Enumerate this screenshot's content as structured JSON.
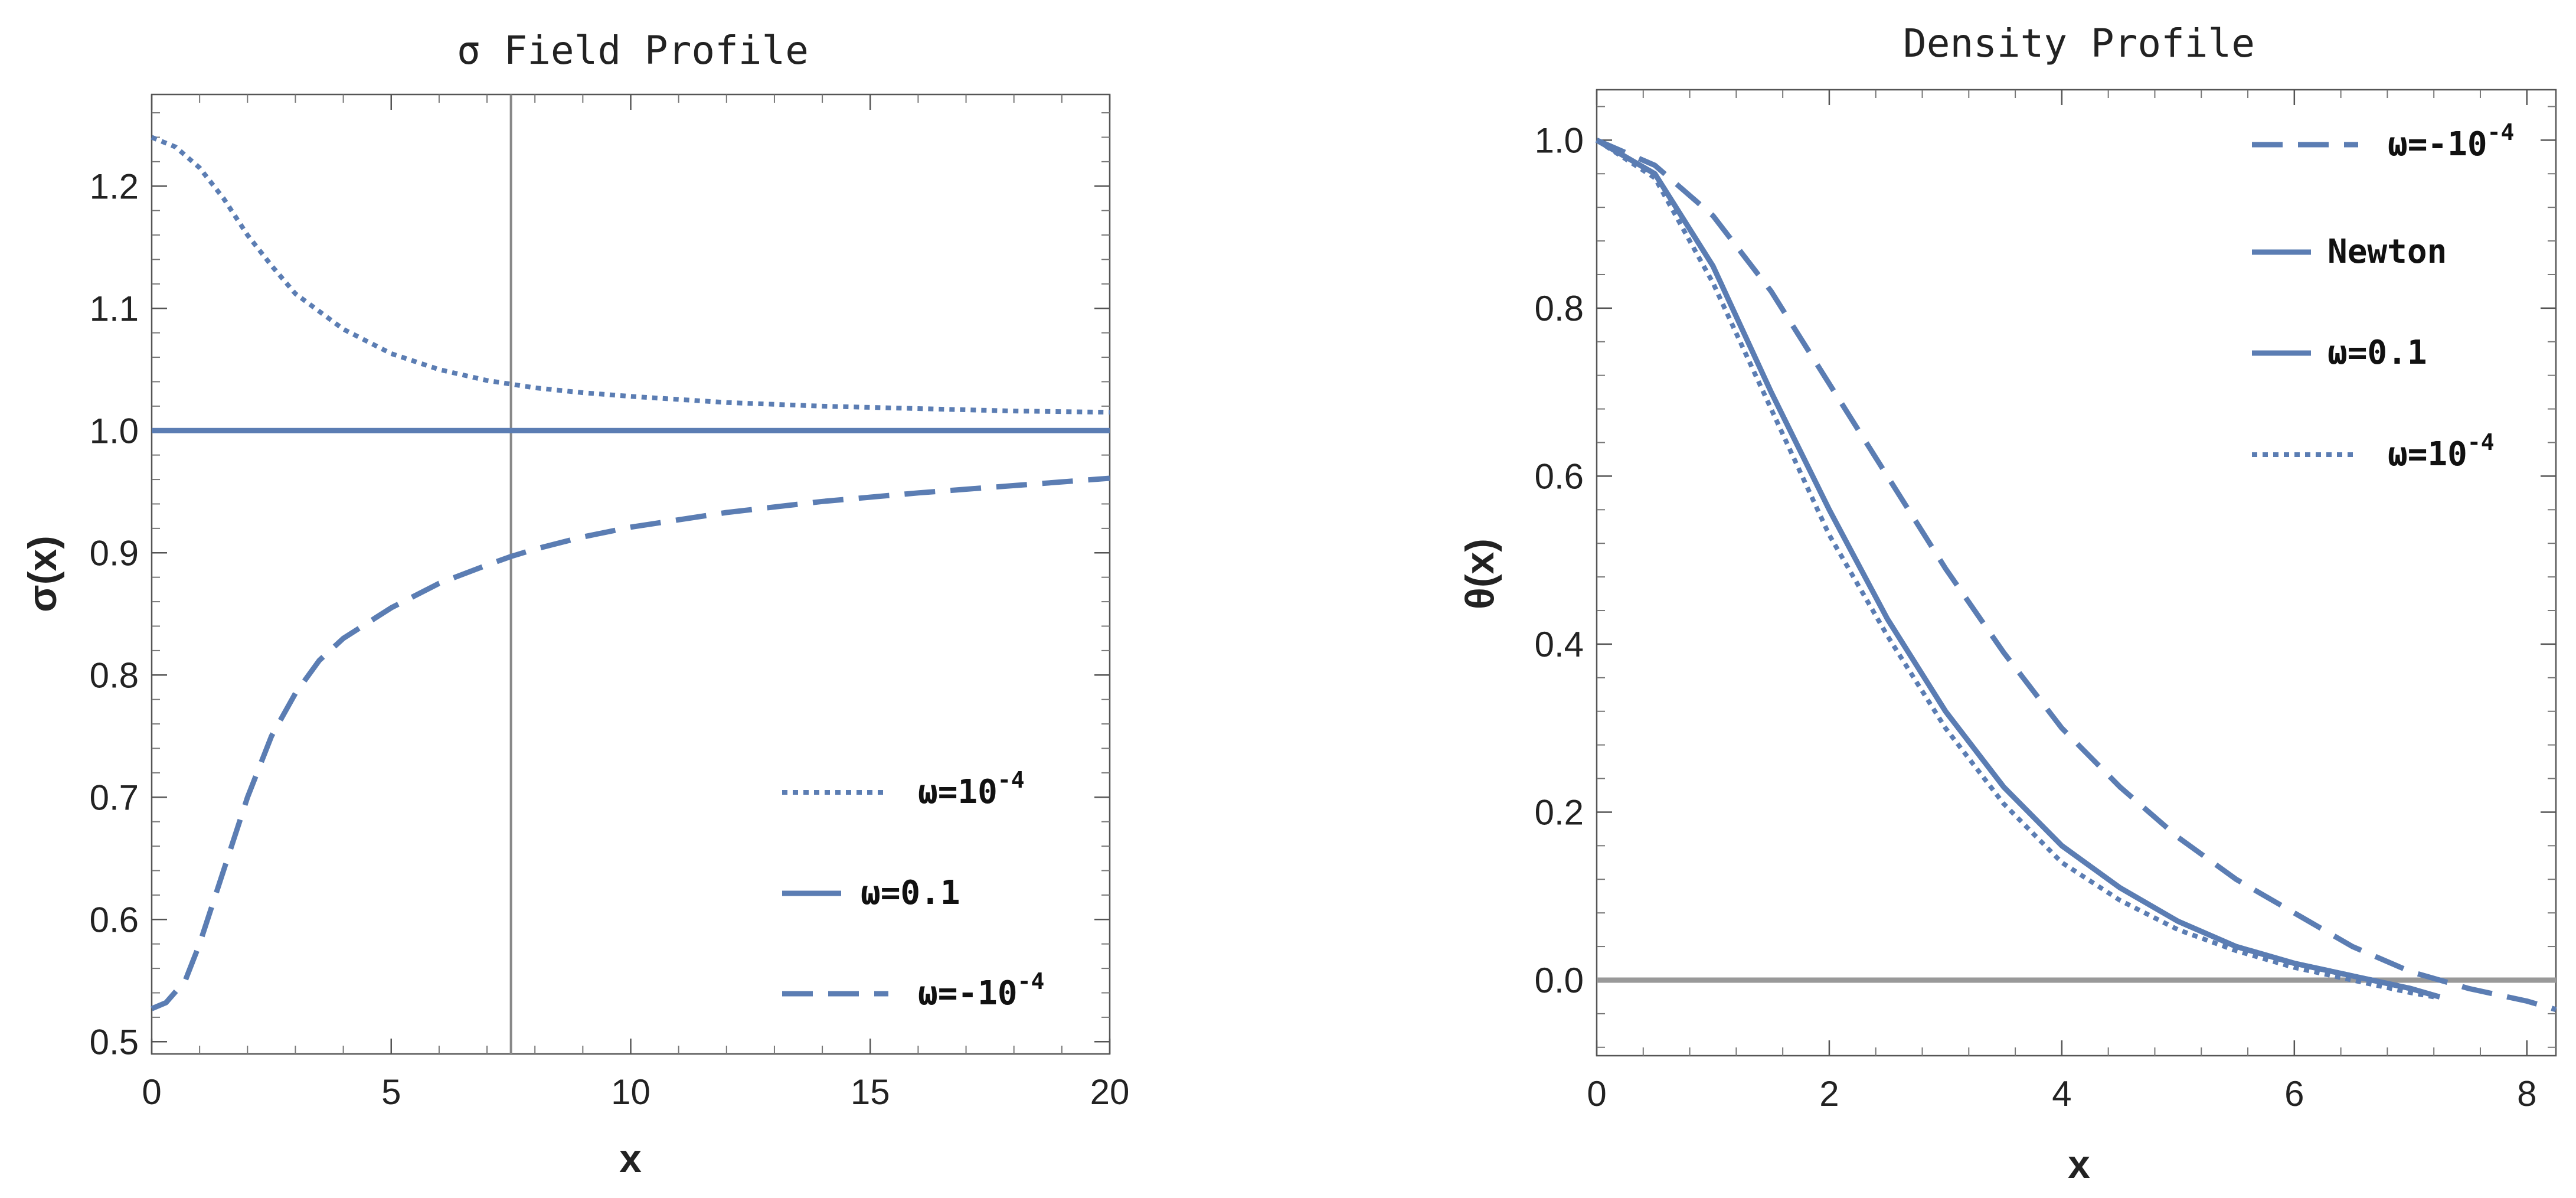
{
  "colors": {
    "series": "#5b7db3",
    "zero_line": "#999999",
    "marker_line": "#888888",
    "frame": "#555555"
  },
  "chart_data": [
    {
      "type": "line",
      "title": "σ Field Profile",
      "xlabel": "x",
      "ylabel": "σ(x)",
      "xlim": [
        0,
        20
      ],
      "ylim": [
        0.49,
        1.275
      ],
      "xticks": [
        0,
        5,
        10,
        15,
        20
      ],
      "xtick_labels": [
        "0",
        "5",
        "10",
        "15",
        "20"
      ],
      "yticks": [
        0.5,
        0.6,
        0.7,
        0.8,
        0.9,
        1.0,
        1.1,
        1.2
      ],
      "ytick_labels": [
        "0.5",
        "0.6",
        "0.7",
        "0.8",
        "0.9",
        "1.0",
        "1.1",
        "1.2"
      ],
      "vertical_line_x": 7.5,
      "legend_position": "bottom-right",
      "series": [
        {
          "name": "ω=10",
          "superscript": "-4",
          "style": "dotted",
          "x": [
            0,
            0.5,
            1,
            1.5,
            2,
            2.5,
            3,
            4,
            5,
            6,
            7,
            8,
            9,
            10,
            12,
            14,
            16,
            18,
            20
          ],
          "y": [
            1.24,
            1.232,
            1.215,
            1.19,
            1.16,
            1.135,
            1.112,
            1.083,
            1.063,
            1.05,
            1.041,
            1.035,
            1.031,
            1.028,
            1.023,
            1.02,
            1.018,
            1.016,
            1.015
          ]
        },
        {
          "name": "ω=0.1",
          "superscript": "",
          "style": "solid",
          "x": [
            0,
            20
          ],
          "y": [
            1.0,
            1.0
          ]
        },
        {
          "name": "ω=-10",
          "superscript": "-4",
          "style": "dashed",
          "x": [
            0,
            0.3,
            0.7,
            1,
            1.5,
            2,
            2.5,
            3,
            3.5,
            4,
            5,
            6,
            7,
            7.5,
            8,
            9,
            10,
            12,
            14,
            16,
            18,
            20
          ],
          "y": [
            0.527,
            0.532,
            0.55,
            0.58,
            0.64,
            0.7,
            0.75,
            0.785,
            0.812,
            0.83,
            0.855,
            0.875,
            0.89,
            0.897,
            0.903,
            0.913,
            0.921,
            0.933,
            0.942,
            0.949,
            0.955,
            0.961
          ]
        }
      ]
    },
    {
      "type": "line",
      "title": "Density Profile",
      "xlabel": "x",
      "ylabel": "θ(x)",
      "xlim": [
        0,
        8.25
      ],
      "ylim": [
        -0.09,
        1.06
      ],
      "xticks": [
        0,
        2,
        4,
        6,
        8
      ],
      "xtick_labels": [
        "0",
        "2",
        "4",
        "6",
        "8"
      ],
      "yticks": [
        0.0,
        0.2,
        0.4,
        0.6,
        0.8,
        1.0
      ],
      "ytick_labels": [
        "0.0",
        "0.2",
        "0.4",
        "0.6",
        "0.8",
        "1.0"
      ],
      "horizontal_line_y": 0.0,
      "legend_position": "top-right",
      "series": [
        {
          "name": "ω=-10",
          "superscript": "-4",
          "style": "dashed",
          "x": [
            0,
            0.5,
            1,
            1.5,
            2,
            2.5,
            3,
            3.5,
            4,
            4.5,
            5,
            5.5,
            6,
            6.5,
            7,
            7.5,
            8,
            8.25
          ],
          "y": [
            1.0,
            0.97,
            0.91,
            0.82,
            0.71,
            0.6,
            0.49,
            0.39,
            0.3,
            0.23,
            0.17,
            0.12,
            0.08,
            0.04,
            0.01,
            -0.01,
            -0.025,
            -0.035
          ]
        },
        {
          "name": "Newton",
          "superscript": "",
          "style": "solid",
          "x": [
            0,
            0.5,
            1,
            1.5,
            2,
            2.5,
            3,
            3.5,
            4,
            4.5,
            5,
            5.5,
            6,
            6.5,
            7,
            7.25
          ],
          "y": [
            1.0,
            0.96,
            0.85,
            0.7,
            0.56,
            0.43,
            0.32,
            0.23,
            0.16,
            0.11,
            0.07,
            0.04,
            0.02,
            0.005,
            -0.01,
            -0.02
          ]
        },
        {
          "name": "ω=0.1",
          "superscript": "",
          "style": "solid",
          "x": [
            0,
            0.5,
            1,
            1.5,
            2,
            2.5,
            3,
            3.5,
            4,
            4.5,
            5,
            5.5,
            6,
            6.5,
            7,
            7.25
          ],
          "y": [
            1.0,
            0.96,
            0.85,
            0.7,
            0.56,
            0.43,
            0.32,
            0.23,
            0.16,
            0.11,
            0.07,
            0.04,
            0.02,
            0.005,
            -0.01,
            -0.02
          ]
        },
        {
          "name": "ω=10",
          "superscript": "-4",
          "style": "dotted",
          "x": [
            0,
            0.5,
            1,
            1.5,
            2,
            2.5,
            3,
            3.5,
            4,
            4.5,
            5,
            5.5,
            6,
            6.5,
            7,
            7.2
          ],
          "y": [
            1.0,
            0.955,
            0.83,
            0.68,
            0.53,
            0.41,
            0.3,
            0.21,
            0.14,
            0.095,
            0.06,
            0.035,
            0.015,
            0.0,
            -0.015,
            -0.02
          ]
        }
      ]
    }
  ]
}
